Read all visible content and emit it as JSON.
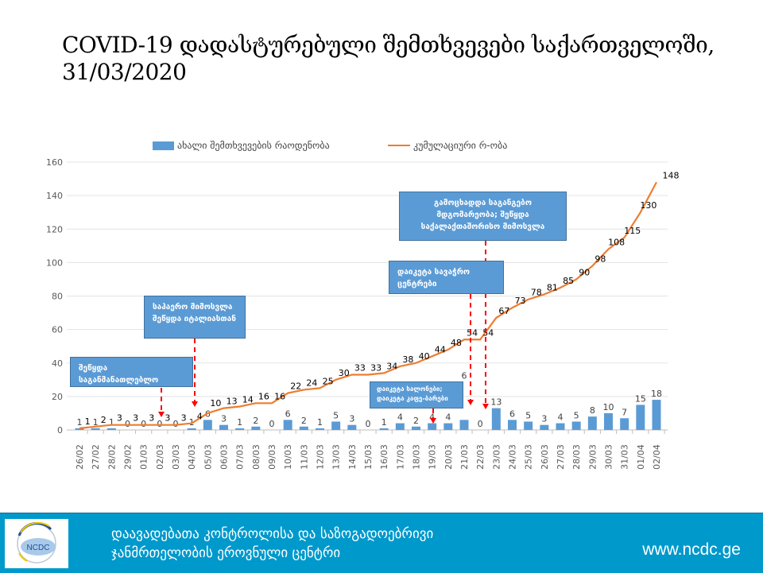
{
  "title": "COVID-19 დადასტურებული შემთხვევები საქართველოში, 31/03/2020",
  "chart_data": {
    "type": "bar+line",
    "title": "COVID-19 დადასტურებული შემთხვევები საქართველოში, 31/03/2020",
    "categories": [
      "26/02",
      "27/02",
      "28/02",
      "29/02",
      "01/03",
      "02/03",
      "03/03",
      "04/03",
      "05/03",
      "06/03",
      "07/03",
      "08/03",
      "09/03",
      "10/03",
      "11/03",
      "12/03",
      "13/03",
      "14/03",
      "15/03",
      "16/03",
      "17/03",
      "18/03",
      "19/03",
      "20/03",
      "21/03",
      "22/03",
      "23/03",
      "24/03",
      "25/03",
      "26/03",
      "27/03",
      "28/03",
      "29/03",
      "30/03",
      "31/03",
      "01/04",
      "02/04"
    ],
    "series": [
      {
        "name": "ახალი შემთხვევების რაოდენობა",
        "type": "bar",
        "color": "#5b9bd5",
        "values": [
          1,
          1,
          1,
          0,
          0,
          0,
          0,
          1,
          6,
          3,
          1,
          2,
          0,
          6,
          2,
          1,
          5,
          3,
          0,
          1,
          4,
          2,
          4,
          4,
          6,
          0,
          13,
          6,
          5,
          3,
          4,
          5,
          8,
          10,
          7,
          15,
          18
        ]
      },
      {
        "name": "კუმულაციური რ-ობა",
        "type": "line",
        "color": "#ed7d31",
        "values": [
          1,
          2,
          3,
          3,
          3,
          3,
          3,
          4,
          10,
          13,
          14,
          16,
          16,
          22,
          24,
          25,
          30,
          33,
          33,
          34,
          38,
          40,
          44,
          48,
          54,
          54,
          67,
          73,
          78,
          81,
          85,
          90,
          98,
          108,
          115,
          130,
          148
        ]
      }
    ],
    "ylim": [
      0,
      160
    ],
    "yticks": [
      0,
      20,
      40,
      60,
      80,
      100,
      120,
      140,
      160
    ],
    "grid": true,
    "legend": "top",
    "annotations": [
      {
        "text": "შეწყდა საგანმანათლებლო პროცესი",
        "date": "02/03"
      },
      {
        "text": "საჰაერო მიმოსვლა შეწყდა იტალიასთან",
        "date": "04/03"
      },
      {
        "text": "დაიკეტა სალონები; დაიკეტა კაფე-ბარები",
        "date": "19/03"
      },
      {
        "text": "დაიკეტა სავაჭრო ცენტრები",
        "date": "21/03"
      },
      {
        "text": "გამოცხადდა საგანგებო მდგომარეობა; შეწყდა საქალაქთაშორისო მიმოსვლა",
        "date": "22/03"
      }
    ]
  },
  "footer": {
    "org_line1": "დაავადებათა კონტროლისა და საზოგადოებრივი",
    "org_line2": "ჯანმრთელობის ეროვნული ცენტრი",
    "logo_text": "NCDC",
    "url": "www.ncdc.ge"
  }
}
